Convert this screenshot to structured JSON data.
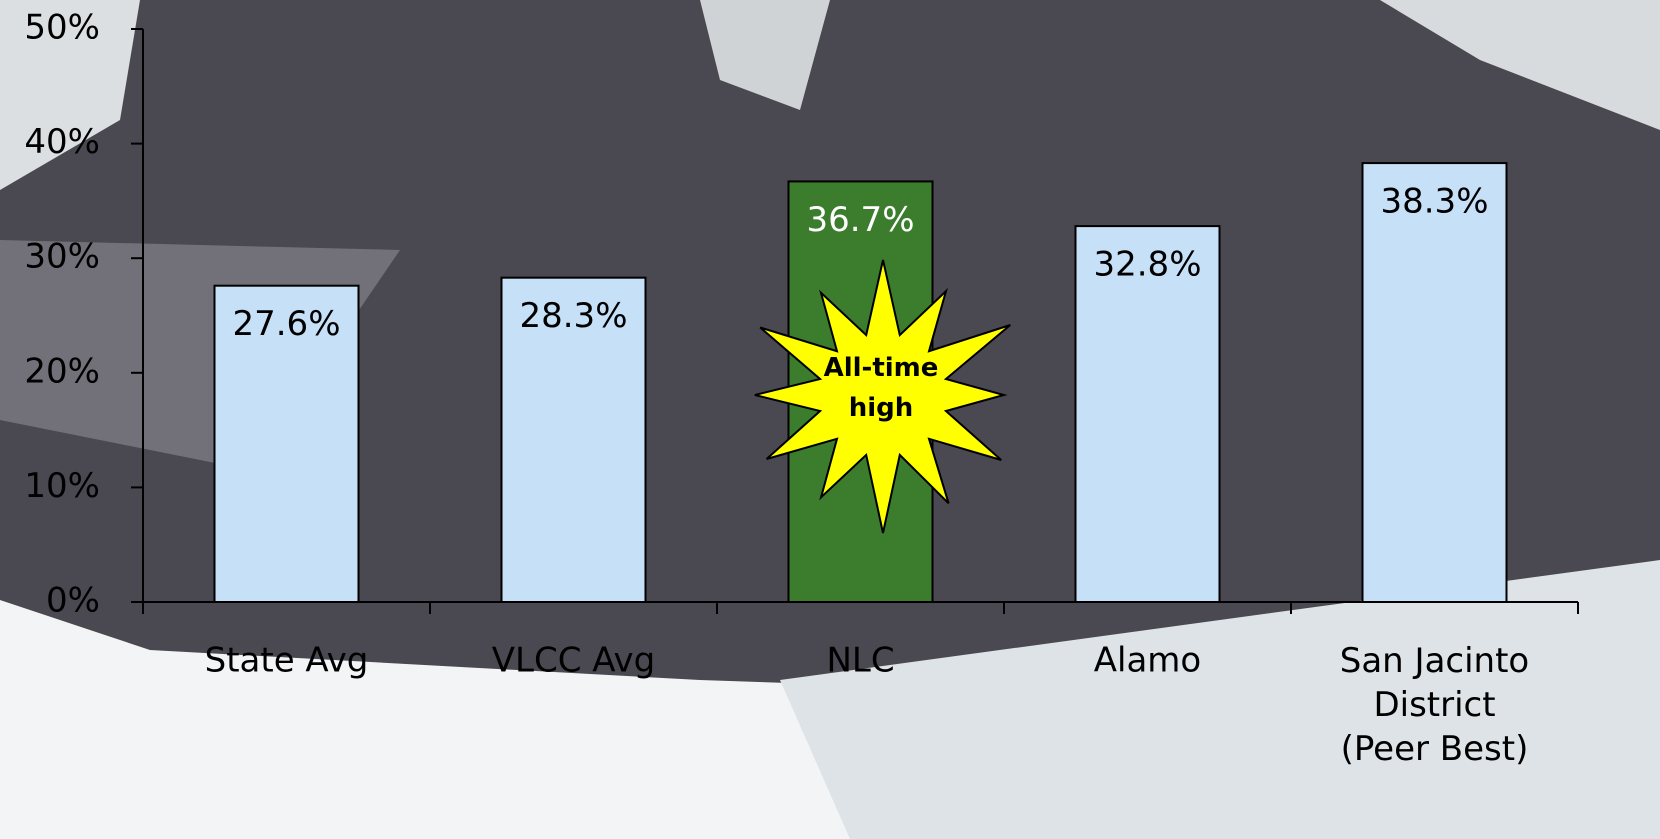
{
  "chart_data": {
    "type": "bar",
    "categories": [
      "State Avg",
      "VLCC Avg",
      "NLC",
      "Alamo",
      "San Jacinto\nDistrict\n(Peer Best)"
    ],
    "values": [
      27.6,
      28.3,
      36.7,
      32.8,
      38.3
    ],
    "value_labels": [
      "27.6%",
      "28.3%",
      "36.7%",
      "32.8%",
      "38.3%"
    ],
    "colors": [
      "#c6e0f8",
      "#c6e0f8",
      "#3b7d2c",
      "#c6e0f8",
      "#c6e0f8"
    ],
    "label_colors": [
      "#000000",
      "#000000",
      "#ffffff",
      "#000000",
      "#000000"
    ],
    "ylim": [
      0,
      50
    ],
    "yticks": [
      {
        "value": 0,
        "label": "0%"
      },
      {
        "value": 10,
        "label": "10%"
      },
      {
        "value": 20,
        "label": "20%"
      },
      {
        "value": 30,
        "label": "30%"
      },
      {
        "value": 40,
        "label": "40%"
      },
      {
        "value": 50,
        "label": "50%"
      }
    ],
    "annotation": "All-time\nhigh"
  }
}
